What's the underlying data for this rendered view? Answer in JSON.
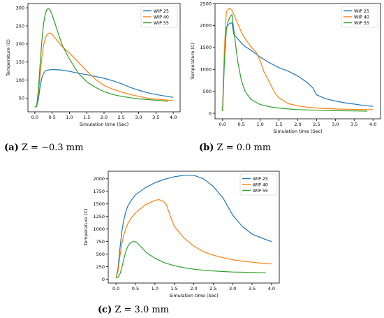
{
  "captions": [
    {
      "label": "(a)",
      "text": "Z = −0.3 mm"
    },
    {
      "label": "(b)",
      "text": "Z = 0.0 mm"
    },
    {
      "label": "(c)",
      "text": "Z = 3.0 mm"
    }
  ],
  "colors": {
    "WIP 25": "#1f77b4",
    "WIP 40": "#ff7f0e",
    "WIP 55": "#2ca02c"
  },
  "chart_data": [
    {
      "type": "line",
      "xlabel": "Simulation time (Sec)",
      "ylabel": "Temperature (C)",
      "xlim": [
        -0.2,
        4.2
      ],
      "ylim": [
        12,
        312
      ],
      "xticks": [
        "0.0",
        "0.5",
        "1.0",
        "1.5",
        "2.0",
        "2.5",
        "3.0",
        "3.5",
        "4.0"
      ],
      "yticks": [
        "50",
        "100",
        "150",
        "200",
        "250",
        "300"
      ],
      "legend": "top-right",
      "series": [
        {
          "name": "WIP 25",
          "x": [
            0.0,
            0.05,
            0.1,
            0.15,
            0.2,
            0.25,
            0.3,
            0.35,
            0.4,
            0.5,
            0.75,
            1.0,
            1.25,
            1.5,
            1.75,
            2.0,
            2.25,
            2.5,
            2.75,
            3.0,
            3.25,
            3.5,
            3.75,
            4.0
          ],
          "y": [
            25,
            27,
            45,
            80,
            105,
            118,
            125,
            127,
            128,
            129,
            128,
            124,
            119,
            115,
            110,
            105,
            98,
            90,
            80,
            72,
            65,
            60,
            56,
            52
          ]
        },
        {
          "name": "WIP 40",
          "x": [
            0.0,
            0.05,
            0.1,
            0.15,
            0.2,
            0.25,
            0.3,
            0.35,
            0.4,
            0.45,
            0.5,
            0.6,
            0.7,
            0.8,
            1.0,
            1.25,
            1.5,
            1.75,
            2.0,
            2.25,
            2.5,
            2.75,
            3.0,
            3.25,
            3.5,
            3.75,
            4.0
          ],
          "y": [
            25,
            27,
            60,
            110,
            160,
            195,
            215,
            226,
            230,
            230,
            226,
            215,
            203,
            192,
            175,
            150,
            125,
            102,
            85,
            75,
            67,
            60,
            55,
            50,
            47,
            45,
            43
          ]
        },
        {
          "name": "WIP 55",
          "x": [
            0.0,
            0.05,
            0.1,
            0.15,
            0.2,
            0.25,
            0.3,
            0.35,
            0.4,
            0.45,
            0.5,
            0.6,
            0.7,
            0.8,
            1.0,
            1.25,
            1.5,
            1.75,
            2.0,
            2.25,
            2.5,
            2.75,
            3.0,
            3.25,
            3.5,
            3.75,
            3.85
          ],
          "y": [
            25,
            27,
            70,
            140,
            205,
            255,
            283,
            296,
            298,
            293,
            280,
            252,
            222,
            195,
            158,
            120,
            95,
            80,
            68,
            60,
            55,
            51,
            48,
            46,
            44,
            42,
            41
          ]
        }
      ]
    },
    {
      "type": "line",
      "xlabel": "Simulation time (Sec)",
      "ylabel": "Temperature (C)",
      "xlim": [
        -0.2,
        4.2
      ],
      "ylim": [
        -125,
        2500
      ],
      "xticks": [
        "0.0",
        "0.5",
        "1.0",
        "1.5",
        "2.0",
        "2.5",
        "3.0",
        "3.5",
        "4.0"
      ],
      "yticks": [
        "0",
        "500",
        "1000",
        "1500",
        "2000",
        "2500"
      ],
      "legend": "top-right",
      "series": [
        {
          "name": "WIP 25",
          "x": [
            0.0,
            0.05,
            0.1,
            0.15,
            0.2,
            0.25,
            0.3,
            0.35,
            0.4,
            0.5,
            0.6,
            0.75,
            1.0,
            1.25,
            1.5,
            1.75,
            2.0,
            2.25,
            2.4,
            2.5,
            2.75,
            3.0,
            3.25,
            3.5,
            3.75,
            4.0
          ],
          "y": [
            50,
            1400,
            1950,
            2020,
            2050,
            2060,
            1800,
            1750,
            1700,
            1600,
            1520,
            1440,
            1280,
            1150,
            1040,
            960,
            850,
            700,
            580,
            420,
            330,
            280,
            240,
            210,
            180,
            160
          ]
        },
        {
          "name": "WIP 40",
          "x": [
            0.0,
            0.05,
            0.1,
            0.15,
            0.2,
            0.25,
            0.3,
            0.4,
            0.5,
            0.6,
            0.75,
            0.9,
            1.0,
            1.1,
            1.25,
            1.4,
            1.5,
            1.75,
            2.0,
            2.25,
            2.5,
            3.0,
            3.5,
            4.0
          ],
          "y": [
            50,
            1500,
            2300,
            2380,
            2380,
            2350,
            2250,
            2050,
            1850,
            1700,
            1520,
            1380,
            1200,
            950,
            700,
            450,
            350,
            220,
            170,
            140,
            120,
            100,
            90,
            85
          ]
        },
        {
          "name": "WIP 55",
          "x": [
            0.0,
            0.05,
            0.1,
            0.15,
            0.2,
            0.25,
            0.3,
            0.4,
            0.5,
            0.6,
            0.75,
            1.0,
            1.25,
            1.5,
            1.75,
            2.0,
            2.5,
            3.0,
            3.5,
            3.85
          ],
          "y": [
            50,
            1200,
            1900,
            2100,
            2200,
            2250,
            1900,
            1200,
            750,
            500,
            320,
            200,
            150,
            120,
            100,
            85,
            70,
            60,
            55,
            50
          ]
        }
      ]
    },
    {
      "type": "line",
      "xlabel": "Simulation time (Sec)",
      "ylabel": "Temperature (C)",
      "xlim": [
        -0.2,
        4.2
      ],
      "ylim": [
        -75,
        2150
      ],
      "xticks": [
        "0.0",
        "0.5",
        "1.0",
        "1.5",
        "2.0",
        "2.5",
        "3.0",
        "3.5",
        "4.0"
      ],
      "yticks": [
        "0",
        "250",
        "500",
        "750",
        "1000",
        "1250",
        "1500",
        "1750",
        "2000"
      ],
      "legend": "top-right",
      "series": [
        {
          "name": "WIP 25",
          "x": [
            0.0,
            0.05,
            0.1,
            0.15,
            0.2,
            0.25,
            0.3,
            0.4,
            0.5,
            0.75,
            1.0,
            1.25,
            1.5,
            1.75,
            2.0,
            2.25,
            2.5,
            2.75,
            3.0,
            3.25,
            3.5,
            3.75,
            4.0
          ],
          "y": [
            30,
            200,
            600,
            950,
            1180,
            1340,
            1450,
            1580,
            1680,
            1820,
            1920,
            1990,
            2040,
            2070,
            2070,
            2000,
            1850,
            1620,
            1280,
            1050,
            900,
            820,
            750
          ]
        },
        {
          "name": "WIP 40",
          "x": [
            0.0,
            0.05,
            0.1,
            0.15,
            0.2,
            0.25,
            0.3,
            0.4,
            0.5,
            0.75,
            1.0,
            1.1,
            1.2,
            1.3,
            1.4,
            1.5,
            1.75,
            2.0,
            2.25,
            2.5,
            2.75,
            3.0,
            3.25,
            3.5,
            3.75,
            4.0
          ],
          "y": [
            30,
            150,
            450,
            700,
            880,
            1000,
            1100,
            1230,
            1320,
            1480,
            1570,
            1585,
            1560,
            1480,
            1250,
            1050,
            820,
            660,
            550,
            480,
            430,
            390,
            360,
            340,
            320,
            305
          ]
        },
        {
          "name": "WIP 55",
          "x": [
            0.0,
            0.05,
            0.1,
            0.15,
            0.2,
            0.25,
            0.3,
            0.35,
            0.4,
            0.45,
            0.5,
            0.55,
            0.6,
            0.7,
            0.8,
            1.0,
            1.25,
            1.5,
            1.75,
            2.0,
            2.25,
            2.5,
            2.75,
            3.0,
            3.25,
            3.5,
            3.75,
            3.85
          ],
          "y": [
            30,
            40,
            100,
            230,
            400,
            550,
            650,
            710,
            740,
            750,
            745,
            720,
            680,
            600,
            520,
            420,
            330,
            270,
            230,
            200,
            180,
            165,
            155,
            145,
            140,
            135,
            130,
            128
          ]
        }
      ]
    }
  ]
}
